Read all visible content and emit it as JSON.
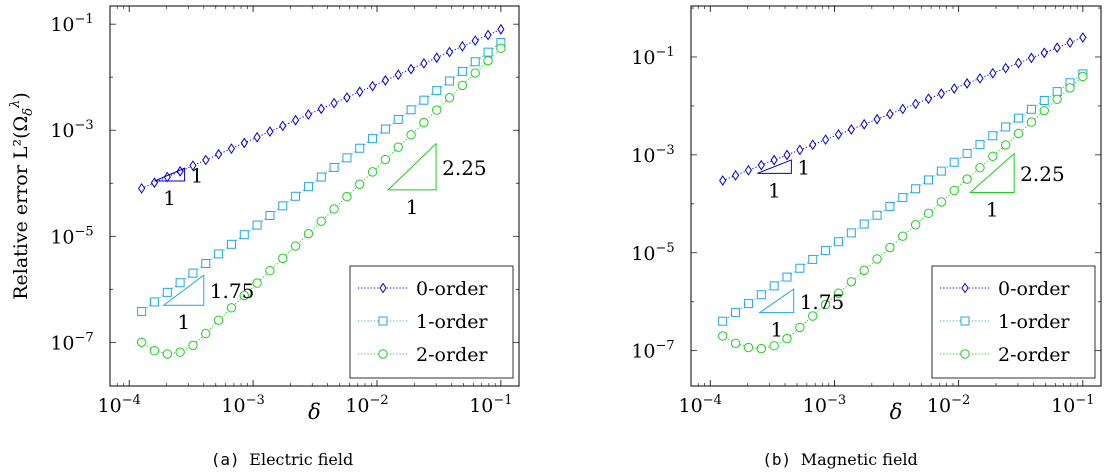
{
  "chart_data": [
    {
      "type": "line",
      "caption_tag": "(a)",
      "caption": "Electric field",
      "ylabel": "Relative error L²(Ω",
      "ylabel_sub": "δ",
      "ylabel_sup": "λ",
      "ylabel_end": ")",
      "xlabel": "δ",
      "xscale": "log",
      "yscale": "log",
      "xlim": [
        7e-05,
        0.14
      ],
      "ylim": [
        1.5e-08,
        0.22
      ],
      "xticks": [
        {
          "v": 0.0001,
          "base": "10",
          "exp": "−4"
        },
        {
          "v": 0.001,
          "base": "10",
          "exp": "−3"
        },
        {
          "v": 0.01,
          "base": "10",
          "exp": "−2"
        },
        {
          "v": 0.1,
          "base": "10",
          "exp": "−1"
        }
      ],
      "yticks": [
        {
          "v": 1e-07,
          "base": "10",
          "exp": "−7"
        },
        {
          "v": 1e-05,
          "base": "10",
          "exp": "−5"
        },
        {
          "v": 0.001,
          "base": "10",
          "exp": "−3"
        },
        {
          "v": 0.1,
          "base": "10",
          "exp": "−1"
        }
      ],
      "legend_position": "bottom-right",
      "series": [
        {
          "name": "0-order",
          "color": "#0000cc",
          "marker": "diamond",
          "x_range": [
            0.000126,
            0.1
          ],
          "y_range": [
            8e-05,
            0.08
          ],
          "n": 29,
          "dip": null
        },
        {
          "name": "1-order",
          "color": "#1fa8e0",
          "marker": "square",
          "x_range": [
            0.000126,
            0.1
          ],
          "y_range": [
            3.8e-07,
            0.045
          ],
          "n": 29,
          "dip": null
        },
        {
          "name": "2-order",
          "color": "#22cc22",
          "marker": "circle",
          "x_range": [
            0.000126,
            0.1
          ],
          "y_range": [
            1e-07,
            0.035
          ],
          "n": 29,
          "dip": {
            "x_min": 0.00021,
            "y_min": 6e-08,
            "join_x": 0.00045
          }
        }
      ],
      "triangles": [
        {
          "x0": 0.00016,
          "x1": 0.00028,
          "y0": 0.00011,
          "slope": 1,
          "color": "#0000cc",
          "slope_label": "1",
          "run_label": "1"
        },
        {
          "x0": 0.00019,
          "x1": 0.0004,
          "y0": 5e-07,
          "slope": 1.75,
          "color": "#1fa8e0",
          "slope_label": "1.75",
          "run_label": "1"
        },
        {
          "x0": 0.0123,
          "x1": 0.03,
          "y0": 7.5e-05,
          "slope": 2.25,
          "color": "#22cc22",
          "slope_label": "2.25",
          "run_label": "1"
        }
      ]
    },
    {
      "type": "line",
      "caption_tag": "(b)",
      "caption": "Magnetic field",
      "xlabel": "δ",
      "xscale": "log",
      "yscale": "log",
      "xlim": [
        7e-05,
        0.14
      ],
      "ylim": [
        1.9e-08,
        1.1
      ],
      "xticks": [
        {
          "v": 0.0001,
          "base": "10",
          "exp": "−4"
        },
        {
          "v": 0.001,
          "base": "10",
          "exp": "−3"
        },
        {
          "v": 0.01,
          "base": "10",
          "exp": "−2"
        },
        {
          "v": 0.1,
          "base": "10",
          "exp": "−1"
        }
      ],
      "yticks": [
        {
          "v": 1e-07,
          "base": "10",
          "exp": "−7"
        },
        {
          "v": 1e-05,
          "base": "10",
          "exp": "−5"
        },
        {
          "v": 0.001,
          "base": "10",
          "exp": "−3"
        },
        {
          "v": 0.1,
          "base": "10",
          "exp": "−1"
        }
      ],
      "legend_position": "bottom-right",
      "series": [
        {
          "name": "0-order",
          "color": "#0000cc",
          "marker": "diamond",
          "x_range": [
            0.000126,
            0.1
          ],
          "y_range": [
            0.0003,
            0.25
          ],
          "n": 29,
          "dip": null
        },
        {
          "name": "1-order",
          "color": "#1fa8e0",
          "marker": "square",
          "x_range": [
            0.000126,
            0.1
          ],
          "y_range": [
            4e-07,
            0.045
          ],
          "n": 29,
          "dip": null
        },
        {
          "name": "2-order",
          "color": "#22cc22",
          "marker": "circle",
          "x_range": [
            0.000126,
            0.1
          ],
          "y_range": [
            2e-07,
            0.04
          ],
          "n": 29,
          "dip": {
            "x_min": 0.00025,
            "y_min": 1.1e-07,
            "join_x": 0.0005
          }
        }
      ],
      "triangles": [
        {
          "x0": 0.00024,
          "x1": 0.00045,
          "y0": 0.00042,
          "slope": 1,
          "color": "#0000cc",
          "slope_label": "1",
          "run_label": "1"
        },
        {
          "x0": 0.00025,
          "x1": 0.00047,
          "y0": 6e-07,
          "slope": 1.75,
          "color": "#1fa8e0",
          "slope_label": "1.75",
          "run_label": "1"
        },
        {
          "x0": 0.0124,
          "x1": 0.028,
          "y0": 0.00017,
          "slope": 2.25,
          "color": "#22cc22",
          "slope_label": "2.25",
          "run_label": "1"
        }
      ]
    }
  ]
}
